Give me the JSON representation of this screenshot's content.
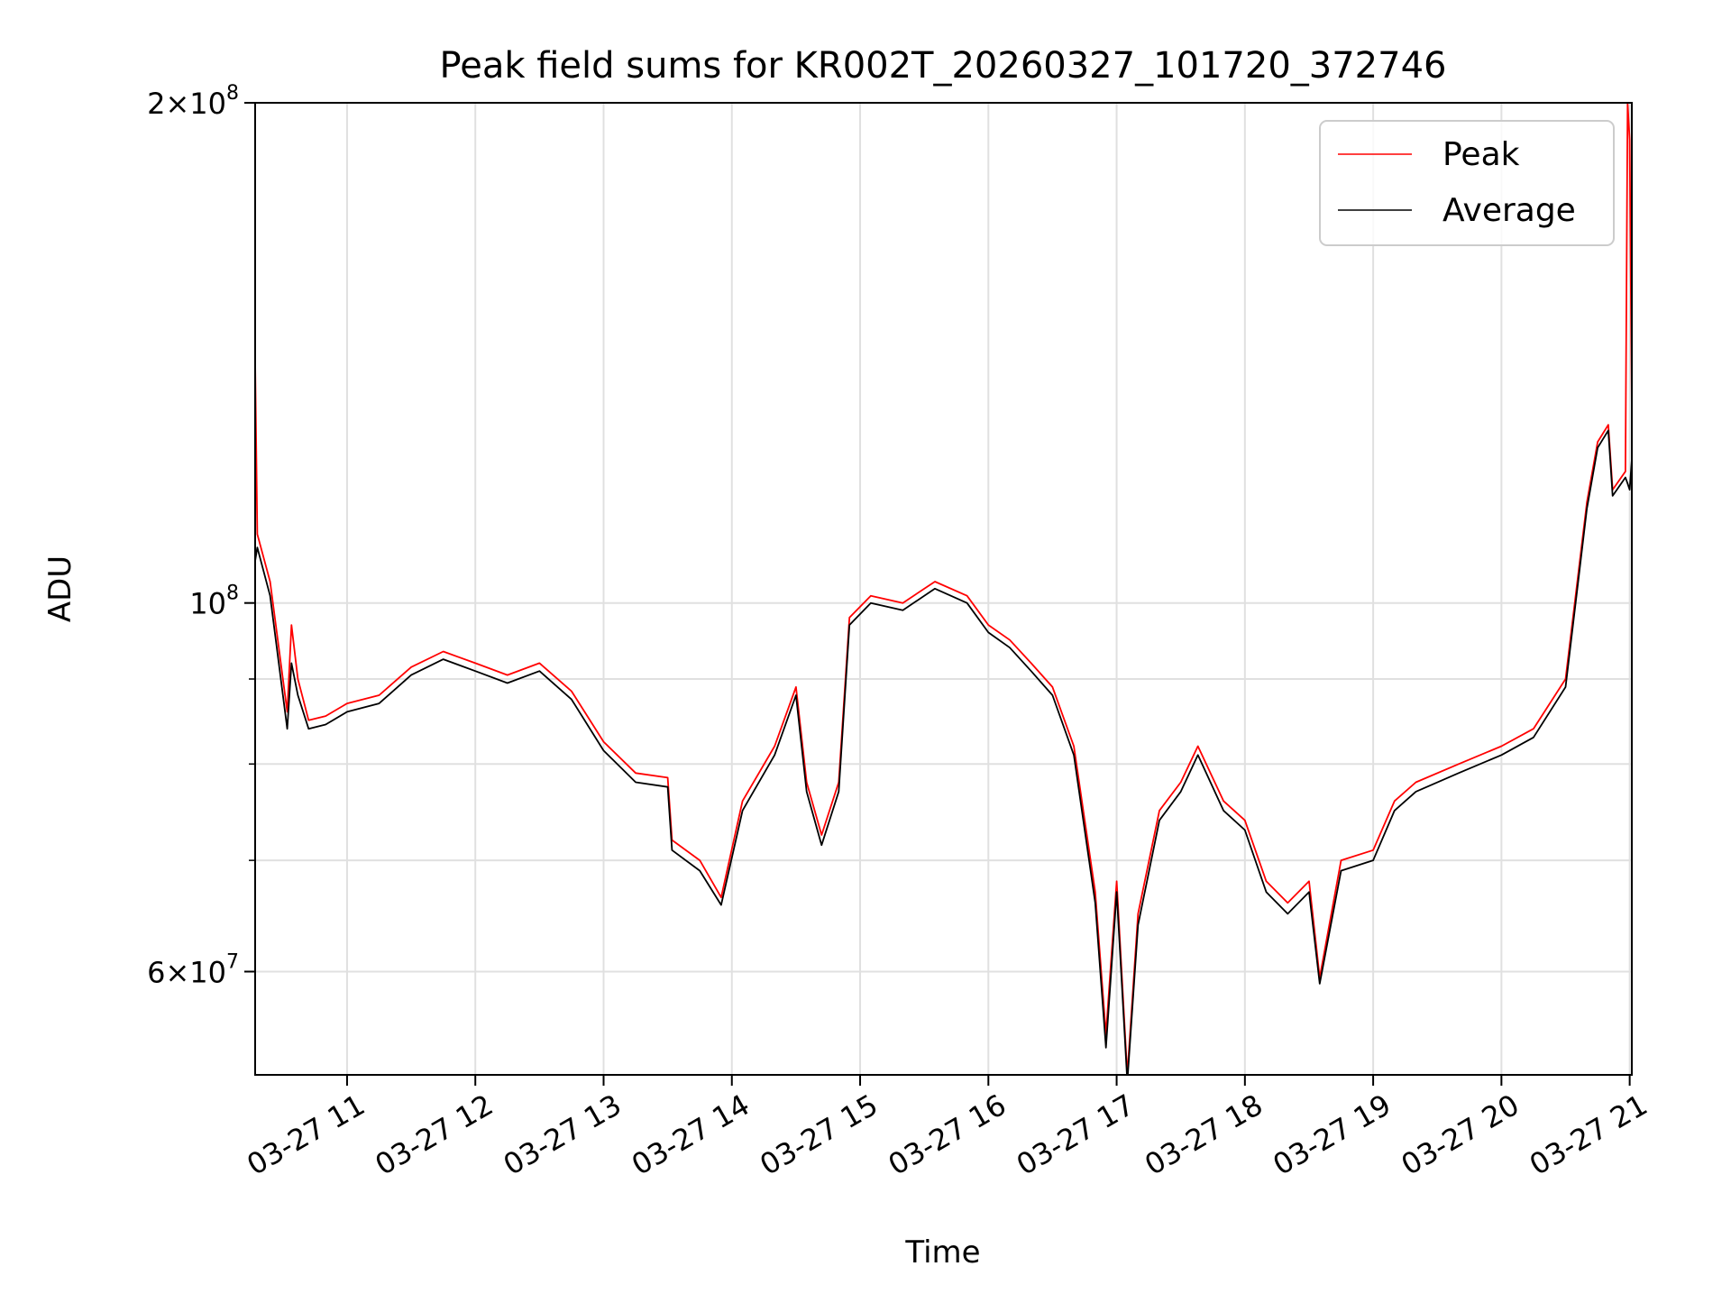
{
  "chart_data": {
    "type": "line",
    "title": "Peak field sums for KR002T_20260327_101720_372746",
    "xlabel": "Time",
    "ylabel": "ADU",
    "y_scale": "log",
    "grid": true,
    "legend_position": "top-right",
    "xlim": [
      "2026-03-27 10:17",
      "2026-03-27 21:01"
    ],
    "ylim": [
      52000000,
      200000000
    ],
    "x_ticks": [
      {
        "value": "2026-03-27 11:00",
        "label": "03-27 11"
      },
      {
        "value": "2026-03-27 12:00",
        "label": "03-27 12"
      },
      {
        "value": "2026-03-27 13:00",
        "label": "03-27 13"
      },
      {
        "value": "2026-03-27 14:00",
        "label": "03-27 14"
      },
      {
        "value": "2026-03-27 15:00",
        "label": "03-27 15"
      },
      {
        "value": "2026-03-27 16:00",
        "label": "03-27 16"
      },
      {
        "value": "2026-03-27 17:00",
        "label": "03-27 17"
      },
      {
        "value": "2026-03-27 18:00",
        "label": "03-27 18"
      },
      {
        "value": "2026-03-27 19:00",
        "label": "03-27 19"
      },
      {
        "value": "2026-03-27 20:00",
        "label": "03-27 20"
      },
      {
        "value": "2026-03-27 21:00",
        "label": "03-27 21"
      }
    ],
    "y_major_ticks": [
      {
        "value": 60000000,
        "base": "6",
        "exp": "7"
      },
      {
        "value": 100000000,
        "base": "",
        "exp": "8"
      },
      {
        "value": 200000000,
        "base": "2",
        "exp": "8"
      }
    ],
    "y_minor_ticks": [
      70000000,
      80000000,
      90000000
    ],
    "series": [
      {
        "name": "Peak",
        "color": "#ff0000",
        "points": [
          [
            "2026-03-27 10:17",
            140000000
          ],
          [
            "2026-03-27 10:18",
            110000000
          ],
          [
            "2026-03-27 10:24",
            103000000
          ],
          [
            "2026-03-27 10:30",
            90000000
          ],
          [
            "2026-03-27 10:32",
            86000000
          ],
          [
            "2026-03-27 10:34",
            97000000
          ],
          [
            "2026-03-27 10:37",
            90000000
          ],
          [
            "2026-03-27 10:42",
            85000000
          ],
          [
            "2026-03-27 10:50",
            85500000
          ],
          [
            "2026-03-27 11:00",
            87000000
          ],
          [
            "2026-03-27 11:15",
            88000000
          ],
          [
            "2026-03-27 11:30",
            91500000
          ],
          [
            "2026-03-27 11:45",
            93500000
          ],
          [
            "2026-03-27 12:00",
            92000000
          ],
          [
            "2026-03-27 12:15",
            90500000
          ],
          [
            "2026-03-27 12:30",
            92000000
          ],
          [
            "2026-03-27 12:45",
            88500000
          ],
          [
            "2026-03-27 13:00",
            82500000
          ],
          [
            "2026-03-27 13:15",
            79000000
          ],
          [
            "2026-03-27 13:30",
            78500000
          ],
          [
            "2026-03-27 13:32",
            72000000
          ],
          [
            "2026-03-27 13:45",
            70000000
          ],
          [
            "2026-03-27 13:55",
            66500000
          ],
          [
            "2026-03-27 14:05",
            76000000
          ],
          [
            "2026-03-27 14:20",
            82000000
          ],
          [
            "2026-03-27 14:30",
            89000000
          ],
          [
            "2026-03-27 14:35",
            78000000
          ],
          [
            "2026-03-27 14:42",
            72500000
          ],
          [
            "2026-03-27 14:50",
            78000000
          ],
          [
            "2026-03-27 14:55",
            98000000
          ],
          [
            "2026-03-27 15:05",
            101000000
          ],
          [
            "2026-03-27 15:20",
            100000000
          ],
          [
            "2026-03-27 15:35",
            103000000
          ],
          [
            "2026-03-27 15:50",
            101000000
          ],
          [
            "2026-03-27 16:00",
            97000000
          ],
          [
            "2026-03-27 16:10",
            95000000
          ],
          [
            "2026-03-27 16:20",
            92000000
          ],
          [
            "2026-03-27 16:30",
            89000000
          ],
          [
            "2026-03-27 16:40",
            82000000
          ],
          [
            "2026-03-27 16:50",
            67000000
          ],
          [
            "2026-03-27 16:55",
            55000000
          ],
          [
            "2026-03-27 17:00",
            68000000
          ],
          [
            "2026-03-27 17:05",
            52000000
          ],
          [
            "2026-03-27 17:10",
            65000000
          ],
          [
            "2026-03-27 17:20",
            75000000
          ],
          [
            "2026-03-27 17:30",
            78000000
          ],
          [
            "2026-03-27 17:38",
            82000000
          ],
          [
            "2026-03-27 17:50",
            76000000
          ],
          [
            "2026-03-27 18:00",
            74000000
          ],
          [
            "2026-03-27 18:10",
            68000000
          ],
          [
            "2026-03-27 18:20",
            66000000
          ],
          [
            "2026-03-27 18:30",
            68000000
          ],
          [
            "2026-03-27 18:35",
            59500000
          ],
          [
            "2026-03-27 18:45",
            70000000
          ],
          [
            "2026-03-27 19:00",
            71000000
          ],
          [
            "2026-03-27 19:10",
            76000000
          ],
          [
            "2026-03-27 19:20",
            78000000
          ],
          [
            "2026-03-27 19:40",
            80000000
          ],
          [
            "2026-03-27 20:00",
            82000000
          ],
          [
            "2026-03-27 20:15",
            84000000
          ],
          [
            "2026-03-27 20:30",
            90000000
          ],
          [
            "2026-03-27 20:40",
            115000000
          ],
          [
            "2026-03-27 20:45",
            125000000
          ],
          [
            "2026-03-27 20:50",
            128000000
          ],
          [
            "2026-03-27 20:52",
            117000000
          ],
          [
            "2026-03-27 20:58",
            120000000
          ],
          [
            "2026-03-27 20:59",
            200000000
          ],
          [
            "2026-03-27 21:00",
            190000000
          ],
          [
            "2026-03-27 21:01",
            130000000
          ]
        ]
      },
      {
        "name": "Average",
        "color": "#000000",
        "points": [
          [
            "2026-03-27 10:17",
            106000000
          ],
          [
            "2026-03-27 10:18",
            108000000
          ],
          [
            "2026-03-27 10:24",
            101000000
          ],
          [
            "2026-03-27 10:30",
            88000000
          ],
          [
            "2026-03-27 10:32",
            84000000
          ],
          [
            "2026-03-27 10:34",
            92000000
          ],
          [
            "2026-03-27 10:37",
            88000000
          ],
          [
            "2026-03-27 10:42",
            84000000
          ],
          [
            "2026-03-27 10:50",
            84500000
          ],
          [
            "2026-03-27 11:00",
            86000000
          ],
          [
            "2026-03-27 11:15",
            87000000
          ],
          [
            "2026-03-27 11:30",
            90500000
          ],
          [
            "2026-03-27 11:45",
            92500000
          ],
          [
            "2026-03-27 12:00",
            91000000
          ],
          [
            "2026-03-27 12:15",
            89500000
          ],
          [
            "2026-03-27 12:30",
            91000000
          ],
          [
            "2026-03-27 12:45",
            87500000
          ],
          [
            "2026-03-27 13:00",
            81500000
          ],
          [
            "2026-03-27 13:15",
            78000000
          ],
          [
            "2026-03-27 13:30",
            77500000
          ],
          [
            "2026-03-27 13:32",
            71000000
          ],
          [
            "2026-03-27 13:45",
            69000000
          ],
          [
            "2026-03-27 13:55",
            65800000
          ],
          [
            "2026-03-27 14:05",
            75000000
          ],
          [
            "2026-03-27 14:20",
            81000000
          ],
          [
            "2026-03-27 14:30",
            88000000
          ],
          [
            "2026-03-27 14:35",
            77000000
          ],
          [
            "2026-03-27 14:42",
            71500000
          ],
          [
            "2026-03-27 14:50",
            77000000
          ],
          [
            "2026-03-27 14:55",
            97000000
          ],
          [
            "2026-03-27 15:05",
            100000000
          ],
          [
            "2026-03-27 15:20",
            99000000
          ],
          [
            "2026-03-27 15:35",
            102000000
          ],
          [
            "2026-03-27 15:50",
            100000000
          ],
          [
            "2026-03-27 16:00",
            96000000
          ],
          [
            "2026-03-27 16:10",
            94000000
          ],
          [
            "2026-03-27 16:20",
            91000000
          ],
          [
            "2026-03-27 16:30",
            88000000
          ],
          [
            "2026-03-27 16:40",
            81000000
          ],
          [
            "2026-03-27 16:50",
            66000000
          ],
          [
            "2026-03-27 16:55",
            54000000
          ],
          [
            "2026-03-27 17:00",
            67000000
          ],
          [
            "2026-03-27 17:05",
            51500000
          ],
          [
            "2026-03-27 17:10",
            64000000
          ],
          [
            "2026-03-27 17:20",
            74000000
          ],
          [
            "2026-03-27 17:30",
            77000000
          ],
          [
            "2026-03-27 17:38",
            81000000
          ],
          [
            "2026-03-27 17:50",
            75000000
          ],
          [
            "2026-03-27 18:00",
            73000000
          ],
          [
            "2026-03-27 18:10",
            67000000
          ],
          [
            "2026-03-27 18:20",
            65000000
          ],
          [
            "2026-03-27 18:30",
            67000000
          ],
          [
            "2026-03-27 18:35",
            59000000
          ],
          [
            "2026-03-27 18:45",
            69000000
          ],
          [
            "2026-03-27 19:00",
            70000000
          ],
          [
            "2026-03-27 19:10",
            75000000
          ],
          [
            "2026-03-27 19:20",
            77000000
          ],
          [
            "2026-03-27 19:40",
            79000000
          ],
          [
            "2026-03-27 20:00",
            81000000
          ],
          [
            "2026-03-27 20:15",
            83000000
          ],
          [
            "2026-03-27 20:30",
            89000000
          ],
          [
            "2026-03-27 20:40",
            114000000
          ],
          [
            "2026-03-27 20:45",
            124000000
          ],
          [
            "2026-03-27 20:50",
            127000000
          ],
          [
            "2026-03-27 20:52",
            116000000
          ],
          [
            "2026-03-27 20:58",
            119000000
          ],
          [
            "2026-03-27 20:59",
            118000000
          ],
          [
            "2026-03-27 21:00",
            117000000
          ],
          [
            "2026-03-27 21:01",
            122000000
          ]
        ]
      }
    ]
  }
}
